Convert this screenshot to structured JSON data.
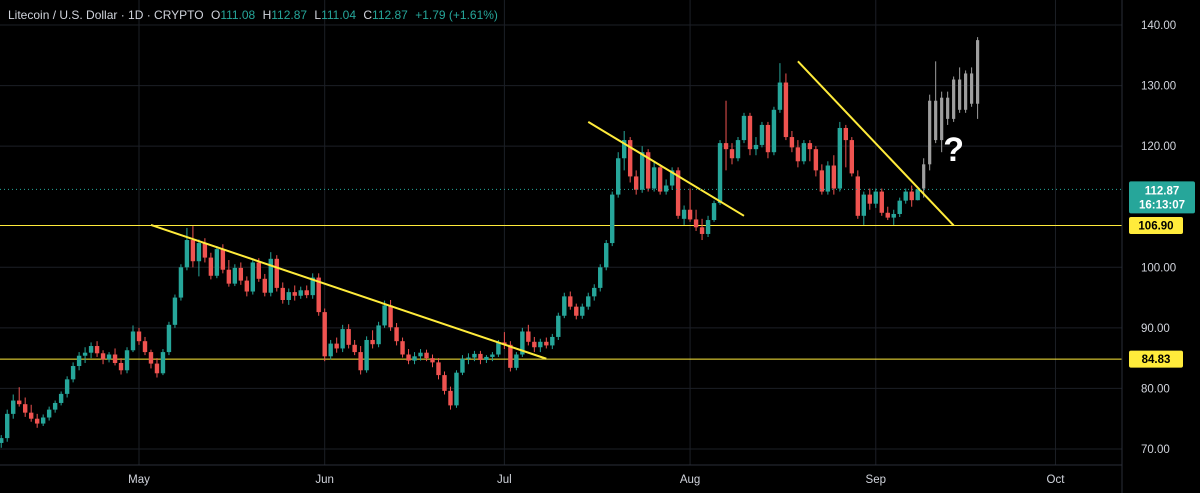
{
  "legend": {
    "symbol": "Litecoin / U.S. Dollar · 1D · CRYPTO",
    "o_label": "O",
    "o_value": "111.08",
    "h_label": "H",
    "h_value": "112.87",
    "l_label": "L",
    "l_value": "111.04",
    "c_label": "C",
    "c_value": "112.87",
    "change": "+1.79 (+1.61%)"
  },
  "colors": {
    "up": "#26a69a",
    "down": "#ef5350",
    "projection": "#9e9e9e",
    "trendline": "#ffeb3b",
    "support": "#ffeb3b",
    "current_price_bg": "#26a69a",
    "background": "#000000"
  },
  "chart_data": {
    "type": "candlestick",
    "title": "",
    "ylim": [
      67.5,
      143
    ],
    "y_ticks": [
      {
        "value": 140,
        "label": "140.00"
      },
      {
        "value": 130,
        "label": "130.00"
      },
      {
        "value": 120,
        "label": "120.00"
      },
      {
        "value": 100,
        "label": "100.00"
      },
      {
        "value": 90,
        "label": "90.00"
      },
      {
        "value": 80,
        "label": "80.00"
      },
      {
        "value": 70,
        "label": "70.00"
      }
    ],
    "x_ticks": [
      {
        "label": "May",
        "day": 0
      },
      {
        "label": "Jun",
        "day": 31
      },
      {
        "label": "Jul",
        "day": 61
      },
      {
        "label": "Aug",
        "day": 92
      },
      {
        "label": "Sep",
        "day": 123
      },
      {
        "label": "Oct",
        "day": 153
      }
    ],
    "x_range_days": [
      -23,
      165
    ],
    "candles": [
      [
        71.0,
        72.3,
        70.2,
        71.8
      ],
      [
        71.8,
        76.5,
        71.2,
        75.8
      ],
      [
        75.8,
        79.0,
        75.0,
        78.0
      ],
      [
        78.0,
        80.2,
        77.0,
        77.4
      ],
      [
        77.4,
        78.5,
        75.3,
        76.0
      ],
      [
        76.0,
        77.3,
        74.5,
        75.0
      ],
      [
        75.0,
        75.8,
        73.5,
        74.2
      ],
      [
        74.2,
        75.7,
        73.8,
        75.2
      ],
      [
        75.2,
        77.0,
        74.7,
        76.5
      ],
      [
        76.5,
        78.0,
        76.0,
        77.6
      ],
      [
        77.6,
        79.5,
        77.2,
        79.1
      ],
      [
        79.1,
        82.0,
        78.5,
        81.5
      ],
      [
        81.5,
        84.3,
        81.0,
        83.7
      ],
      [
        83.7,
        86.0,
        83.0,
        85.4
      ],
      [
        85.4,
        86.8,
        84.2,
        85.9
      ],
      [
        85.9,
        87.6,
        85.0,
        87.0
      ],
      [
        87.0,
        87.8,
        85.2,
        85.8
      ],
      [
        85.8,
        86.3,
        84.0,
        84.8
      ],
      [
        84.8,
        86.0,
        84.3,
        85.6
      ],
      [
        85.6,
        86.6,
        83.8,
        84.2
      ],
      [
        84.2,
        85.0,
        82.3,
        83.0
      ],
      [
        83.0,
        86.8,
        82.5,
        86.3
      ],
      [
        86.3,
        90.4,
        86.0,
        89.4
      ],
      [
        89.4,
        90.0,
        87.2,
        87.8
      ],
      [
        87.8,
        88.5,
        85.5,
        86.0
      ],
      [
        86.0,
        86.4,
        83.3,
        84.1
      ],
      [
        84.1,
        85.0,
        81.8,
        82.5
      ],
      [
        82.5,
        86.5,
        82.2,
        86.0
      ],
      [
        86.0,
        91.0,
        85.5,
        90.5
      ],
      [
        90.5,
        95.5,
        90.0,
        95.0
      ],
      [
        95.0,
        100.5,
        94.5,
        100.0
      ],
      [
        100.0,
        106.5,
        99.5,
        104.5
      ],
      [
        104.5,
        106.8,
        100.0,
        101.0
      ],
      [
        101.0,
        104.6,
        98.5,
        104.0
      ],
      [
        104.0,
        104.8,
        100.8,
        101.6
      ],
      [
        101.6,
        102.4,
        98.0,
        98.6
      ],
      [
        98.6,
        103.5,
        98.2,
        103.0
      ],
      [
        103.0,
        103.8,
        99.0,
        99.6
      ],
      [
        99.6,
        101.2,
        96.8,
        97.3
      ],
      [
        97.3,
        100.5,
        96.9,
        99.9
      ],
      [
        99.9,
        100.8,
        97.1,
        97.8
      ],
      [
        97.8,
        98.5,
        95.2,
        96.0
      ],
      [
        96.0,
        101.2,
        95.5,
        100.8
      ],
      [
        100.8,
        101.5,
        97.6,
        98.1
      ],
      [
        98.1,
        98.9,
        95.2,
        95.8
      ],
      [
        95.8,
        102.5,
        95.2,
        101.4
      ],
      [
        101.4,
        102.0,
        96.0,
        96.6
      ],
      [
        96.6,
        97.5,
        94.0,
        94.6
      ],
      [
        94.6,
        96.5,
        93.8,
        95.9
      ],
      [
        95.9,
        97.0,
        94.5,
        95.3
      ],
      [
        95.3,
        96.8,
        94.8,
        96.2
      ],
      [
        96.2,
        97.0,
        94.9,
        95.4
      ],
      [
        95.4,
        99.0,
        94.8,
        98.3
      ],
      [
        98.3,
        99.0,
        92.0,
        92.6
      ],
      [
        92.6,
        93.2,
        84.5,
        85.3
      ],
      [
        85.3,
        88.0,
        84.8,
        87.4
      ],
      [
        87.4,
        88.4,
        85.9,
        86.6
      ],
      [
        86.6,
        90.5,
        86.0,
        89.8
      ],
      [
        89.8,
        90.6,
        86.6,
        87.2
      ],
      [
        87.2,
        88.0,
        85.5,
        86.0
      ],
      [
        86.0,
        87.0,
        82.3,
        83.0
      ],
      [
        83.0,
        88.6,
        82.6,
        88.0
      ],
      [
        88.0,
        89.6,
        86.6,
        87.3
      ],
      [
        87.3,
        91.0,
        86.8,
        90.4
      ],
      [
        90.4,
        94.5,
        90.0,
        93.7
      ],
      [
        93.7,
        94.6,
        89.5,
        90.1
      ],
      [
        90.1,
        90.8,
        87.1,
        87.8
      ],
      [
        87.8,
        88.4,
        85.1,
        85.6
      ],
      [
        85.6,
        86.5,
        84.0,
        84.6
      ],
      [
        84.6,
        86.0,
        84.0,
        85.3
      ],
      [
        85.3,
        86.5,
        84.6,
        85.9
      ],
      [
        85.9,
        86.4,
        84.5,
        85.0
      ],
      [
        85.0,
        85.6,
        83.5,
        84.3
      ],
      [
        84.3,
        85.0,
        81.5,
        82.2
      ],
      [
        82.2,
        82.8,
        79.0,
        79.6
      ],
      [
        79.6,
        80.3,
        76.5,
        77.2
      ],
      [
        77.2,
        83.0,
        76.8,
        82.6
      ],
      [
        82.6,
        85.5,
        82.2,
        84.9
      ],
      [
        84.9,
        85.8,
        84.0,
        85.1
      ],
      [
        85.1,
        86.2,
        84.5,
        85.7
      ],
      [
        85.7,
        86.2,
        84.0,
        84.7
      ],
      [
        84.7,
        85.5,
        84.2,
        85.2
      ],
      [
        85.2,
        86.0,
        84.5,
        85.6
      ],
      [
        85.6,
        88.0,
        85.2,
        87.6
      ],
      [
        87.6,
        89.3,
        86.5,
        87.2
      ],
      [
        87.2,
        87.8,
        82.8,
        83.4
      ],
      [
        83.4,
        86.0,
        83.0,
        85.6
      ],
      [
        85.6,
        90.0,
        85.2,
        89.4
      ],
      [
        89.4,
        90.5,
        87.1,
        87.7
      ],
      [
        87.7,
        88.5,
        86.0,
        86.8
      ],
      [
        86.8,
        88.2,
        86.0,
        87.7
      ],
      [
        87.7,
        88.4,
        86.6,
        87.1
      ],
      [
        87.1,
        89.0,
        86.5,
        88.5
      ],
      [
        88.5,
        92.5,
        88.0,
        92.0
      ],
      [
        92.0,
        95.8,
        91.6,
        95.2
      ],
      [
        95.2,
        96.0,
        93.0,
        93.5
      ],
      [
        93.5,
        94.0,
        91.4,
        92.0
      ],
      [
        92.0,
        94.0,
        91.5,
        93.5
      ],
      [
        93.5,
        95.8,
        93.0,
        95.2
      ],
      [
        95.2,
        97.2,
        94.5,
        96.6
      ],
      [
        96.6,
        100.5,
        96.0,
        100.0
      ],
      [
        100.0,
        104.5,
        99.5,
        104.0
      ],
      [
        104.0,
        112.5,
        103.5,
        112.0
      ],
      [
        112.0,
        119.0,
        111.5,
        118.0
      ],
      [
        118.0,
        122.5,
        116.0,
        121.0
      ],
      [
        121.0,
        121.5,
        114.0,
        115.0
      ],
      [
        115.0,
        116.0,
        112.0,
        112.8
      ],
      [
        112.8,
        120.0,
        112.3,
        119.0
      ],
      [
        119.0,
        119.5,
        112.5,
        113.0
      ],
      [
        113.0,
        117.5,
        112.5,
        116.5
      ],
      [
        116.5,
        117.0,
        112.0,
        112.5
      ],
      [
        112.5,
        114.5,
        112.0,
        113.5
      ],
      [
        113.5,
        116.5,
        112.8,
        116.0
      ],
      [
        116.0,
        116.5,
        108.0,
        108.5
      ],
      [
        108.0,
        110.2,
        107.0,
        109.5
      ],
      [
        109.5,
        113.0,
        107.5,
        107.9
      ],
      [
        107.9,
        109.5,
        106.0,
        106.6
      ],
      [
        106.6,
        108.0,
        104.5,
        105.5
      ],
      [
        105.5,
        108.5,
        105.0,
        107.8
      ],
      [
        107.8,
        111.0,
        107.5,
        110.6
      ],
      [
        110.6,
        121.0,
        110.3,
        120.5
      ],
      [
        120.5,
        127.5,
        116.0,
        119.5
      ],
      [
        119.5,
        120.5,
        117.0,
        118.0
      ],
      [
        118.0,
        121.5,
        117.5,
        121.0
      ],
      [
        121.0,
        125.5,
        120.5,
        125.0
      ],
      [
        125.0,
        125.5,
        118.5,
        119.5
      ],
      [
        119.5,
        121.5,
        118.5,
        120.2
      ],
      [
        120.2,
        124.0,
        119.8,
        123.5
      ],
      [
        123.5,
        124.0,
        118.0,
        119.0
      ],
      [
        119.0,
        126.5,
        118.5,
        126.0
      ],
      [
        126.0,
        133.7,
        125.5,
        130.5
      ],
      [
        130.5,
        132.0,
        121.0,
        121.5
      ],
      [
        121.5,
        122.5,
        119.0,
        119.8
      ],
      [
        119.8,
        121.0,
        116.5,
        117.5
      ],
      [
        117.5,
        121.0,
        117.0,
        120.5
      ],
      [
        120.5,
        121.0,
        117.5,
        119.5
      ],
      [
        119.5,
        120.0,
        115.0,
        116.0
      ],
      [
        116.0,
        117.0,
        112.0,
        112.5
      ],
      [
        112.5,
        117.5,
        112.0,
        116.8
      ],
      [
        116.8,
        118.5,
        112.0,
        113.0
      ],
      [
        113.0,
        124.0,
        112.5,
        123.0
      ],
      [
        123.0,
        123.5,
        116.5,
        121.0
      ],
      [
        121.0,
        121.5,
        115.0,
        115.5
      ],
      [
        115.0,
        116.0,
        108.0,
        108.5
      ],
      [
        108.5,
        112.5,
        107.0,
        112.0
      ],
      [
        112.0,
        113.0,
        109.5,
        110.5
      ],
      [
        110.5,
        113.0,
        109.8,
        112.5
      ],
      [
        112.5,
        113.0,
        108.5,
        109.0
      ],
      [
        109.0,
        110.0,
        107.8,
        108.2
      ],
      [
        108.2,
        109.5,
        107.0,
        108.8
      ],
      [
        108.8,
        111.5,
        108.3,
        111.0
      ],
      [
        111.0,
        113.0,
        110.5,
        112.5
      ],
      [
        112.5,
        113.5,
        110.0,
        111.08
      ],
      [
        111.08,
        112.87,
        111.04,
        112.87
      ]
    ],
    "projection_candles": [
      [
        113.0,
        118.0,
        111.5,
        117.0
      ],
      [
        117.0,
        128.5,
        116.0,
        127.5
      ],
      [
        127.5,
        134.0,
        120.5,
        121.0
      ],
      [
        121.0,
        129.0,
        119.0,
        128.0
      ],
      [
        128.0,
        129.0,
        123.5,
        124.5
      ],
      [
        124.5,
        131.5,
        124.0,
        131.0
      ],
      [
        131.0,
        133.0,
        125.5,
        126.0
      ],
      [
        126.0,
        132.5,
        125.5,
        132.0
      ],
      [
        132.0,
        133.0,
        126.5,
        127.0
      ],
      [
        127.0,
        138.0,
        124.5,
        137.5
      ]
    ],
    "trendlines": [
      {
        "from": {
          "day": 2,
          "price": 107.0
        },
        "to": {
          "day": 68,
          "price": 84.9
        }
      },
      {
        "from": {
          "day": 75,
          "price": 124.0
        },
        "to": {
          "day": 101,
          "price": 108.5
        }
      },
      {
        "from": {
          "day": 110,
          "price": 134.0
        },
        "to": {
          "day": 136,
          "price": 106.9
        }
      }
    ],
    "horizontal_levels": [
      {
        "price": 106.9,
        "label": "106.90"
      },
      {
        "price": 84.83,
        "label": "84.83"
      }
    ],
    "current_price": {
      "price": 112.87,
      "label": "112.87",
      "countdown": "16:13:07"
    },
    "annotation": {
      "text": "?",
      "day": 136,
      "price": 119.5
    }
  }
}
